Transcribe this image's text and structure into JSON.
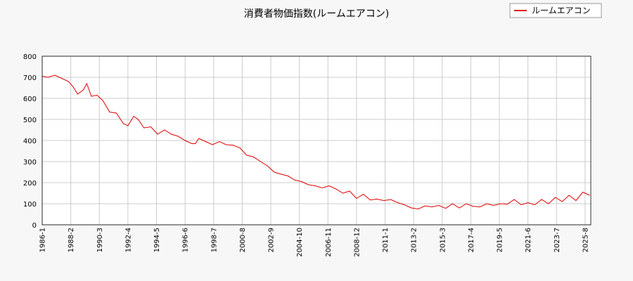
{
  "chart_data": {
    "type": "line",
    "title": "消費者物価指数(ルームエアコン)",
    "xlabel": "",
    "ylabel": "",
    "ylim": [
      0,
      800
    ],
    "yticks": [
      0,
      100,
      200,
      300,
      400,
      500,
      600,
      700,
      800
    ],
    "xlim": [
      "1986-01",
      "2026-01"
    ],
    "xticks": [
      "1986-1",
      "1988-2",
      "1990-3",
      "1992-4",
      "1994-5",
      "1996-6",
      "1998-7",
      "2000-8",
      "2002-9",
      "2004-10",
      "2006-11",
      "2008-12",
      "2011-1",
      "2013-2",
      "2015-3",
      "2017-4",
      "2019-5",
      "2021-6",
      "2023-7",
      "2025-8"
    ],
    "grid": true,
    "legend": "top-right",
    "colors": {
      "series": "#dd0000",
      "grid": "#cccccc",
      "background": "#ffffff",
      "page": "#f7f7f7"
    },
    "series": [
      {
        "name": "ルームエアコン",
        "x": [
          "1986-01",
          "1986-06",
          "1986-12",
          "1987-06",
          "1987-12",
          "1988-04",
          "1988-08",
          "1989-01",
          "1989-04",
          "1989-08",
          "1990-01",
          "1990-06",
          "1990-12",
          "1991-06",
          "1991-12",
          "1992-04",
          "1992-09",
          "1993-01",
          "1993-06",
          "1993-12",
          "1994-06",
          "1994-12",
          "1995-06",
          "1995-12",
          "1996-06",
          "1996-12",
          "1997-03",
          "1997-06",
          "1997-12",
          "1998-06",
          "1998-12",
          "1999-06",
          "1999-12",
          "2000-06",
          "2000-12",
          "2001-06",
          "2001-12",
          "2002-06",
          "2002-12",
          "2003-06",
          "2003-12",
          "2004-06",
          "2004-12",
          "2005-06",
          "2005-12",
          "2006-06",
          "2006-12",
          "2007-06",
          "2007-12",
          "2008-06",
          "2008-12",
          "2009-06",
          "2009-12",
          "2010-06",
          "2010-12",
          "2011-06",
          "2011-12",
          "2012-06",
          "2012-12",
          "2013-06",
          "2013-12",
          "2014-06",
          "2014-12",
          "2015-06",
          "2015-12",
          "2016-06",
          "2016-12",
          "2017-06",
          "2017-12",
          "2018-06",
          "2018-12",
          "2019-06",
          "2019-12",
          "2020-06",
          "2020-12",
          "2021-06",
          "2021-12",
          "2022-06",
          "2022-12",
          "2023-06",
          "2023-12",
          "2024-06",
          "2024-12",
          "2025-06",
          "2025-12"
        ],
        "values": [
          705,
          700,
          710,
          695,
          680,
          655,
          620,
          640,
          670,
          610,
          615,
          590,
          535,
          530,
          480,
          470,
          515,
          500,
          460,
          465,
          430,
          450,
          430,
          420,
          400,
          385,
          385,
          410,
          395,
          380,
          395,
          380,
          378,
          365,
          330,
          322,
          300,
          280,
          250,
          240,
          232,
          212,
          205,
          190,
          185,
          175,
          185,
          170,
          150,
          160,
          125,
          145,
          118,
          122,
          115,
          120,
          105,
          95,
          80,
          75,
          90,
          85,
          92,
          78,
          100,
          80,
          100,
          88,
          85,
          100,
          92,
          100,
          98,
          120,
          95,
          105,
          95,
          120,
          100,
          130,
          110,
          140,
          115,
          155,
          140
        ]
      }
    ]
  }
}
